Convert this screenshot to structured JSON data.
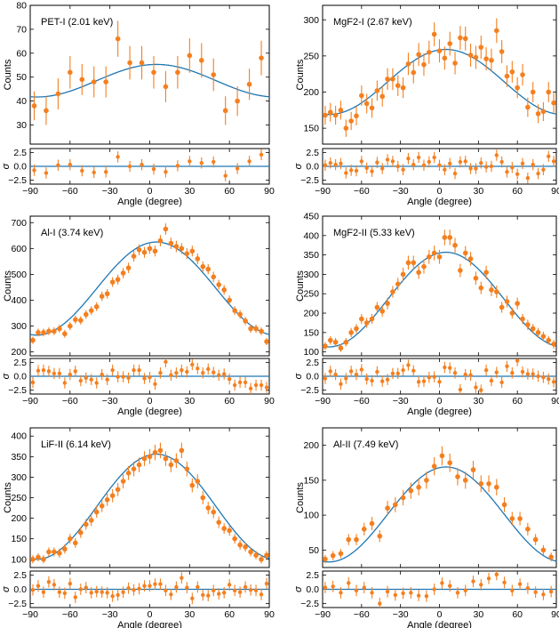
{
  "colors": {
    "data": "#f47f1f",
    "model": "#1f77b4",
    "axes": "#000000"
  },
  "shared": {
    "xlabel": "Angle (degree)",
    "ylabel_main": "Counts",
    "ylabel_resid": "σ",
    "x_ticks": [
      -90,
      -60,
      -30,
      0,
      30,
      60,
      90
    ],
    "resid_ticks": [
      -2.5,
      0.0,
      2.5
    ],
    "resid_tick_labels": [
      "-2.5",
      "0.0",
      "2.5"
    ]
  },
  "chart_data": [
    {
      "type": "scatter",
      "title": "PET-I (2.01 keV)",
      "xlim": [
        -90,
        90
      ],
      "ylim": [
        22,
        80
      ],
      "yticks": [
        30,
        40,
        50,
        60,
        70,
        80
      ],
      "model": {
        "mean": 48.5,
        "amplitude": 6.8
      },
      "x": [
        -87,
        -78,
        -69,
        -60,
        -51,
        -42,
        -33,
        -24,
        -15,
        -6,
        3,
        12,
        21,
        30,
        39,
        48,
        57,
        66,
        75,
        84
      ],
      "y": [
        38,
        36,
        43,
        52,
        49,
        48,
        48,
        66,
        56,
        56,
        52,
        46,
        52,
        59,
        57,
        51,
        36,
        40,
        47,
        58
      ],
      "yerr": [
        6,
        6,
        6.5,
        6.8,
        6.5,
        6.5,
        6.5,
        7.5,
        7,
        7,
        6.8,
        6.5,
        6.8,
        7.2,
        7.2,
        6.8,
        6,
        6.2,
        6.5,
        7.2
      ],
      "residuals": [
        -0.7,
        -1.2,
        0.2,
        0.3,
        -0.8,
        -1.1,
        -1.0,
        1.7,
        0.0,
        0.3,
        -0.5,
        -1.0,
        0.1,
        0.9,
        0.6,
        0.8,
        -1.7,
        -0.4,
        0.9,
        2.1
      ]
    },
    {
      "type": "scatter",
      "title": "MgF2-I (2.67 keV)",
      "xlim": [
        -90,
        90
      ],
      "ylim": [
        128,
        320
      ],
      "yticks": [
        150,
        200,
        250,
        300
      ],
      "model": {
        "mean": 214,
        "amplitude": 45
      },
      "x": [
        -88,
        -84,
        -80,
        -76,
        -72,
        -68,
        -64,
        -60,
        -56,
        -52,
        -48,
        -44,
        -40,
        -36,
        -32,
        -28,
        -24,
        -20,
        -16,
        -12,
        -8,
        -4,
        0,
        4,
        8,
        12,
        16,
        20,
        24,
        28,
        32,
        36,
        40,
        44,
        48,
        52,
        56,
        60,
        64,
        68,
        72,
        76,
        80,
        84,
        88
      ],
      "y": [
        168,
        172,
        168,
        175,
        150,
        160,
        167,
        195,
        184,
        178,
        202,
        194,
        218,
        218,
        209,
        206,
        239,
        227,
        252,
        238,
        255,
        280,
        257,
        247,
        267,
        240,
        275,
        274,
        251,
        248,
        262,
        246,
        244,
        285,
        256,
        222,
        228,
        206,
        224,
        179,
        200,
        170,
        173,
        200,
        185
      ],
      "yerr": [
        13,
        13,
        13,
        13,
        12,
        12.5,
        13,
        14,
        13.5,
        13.5,
        14,
        14,
        15,
        15,
        14.5,
        14.5,
        15.5,
        15,
        16,
        15.5,
        16,
        16.5,
        16,
        16,
        16.5,
        15.5,
        16.5,
        16.5,
        16,
        16,
        16,
        16,
        16,
        17,
        16,
        15,
        15,
        14.5,
        15,
        13.5,
        14,
        13,
        13,
        14,
        13.5
      ],
      "residuals": [
        0.2,
        0.6,
        0.3,
        0.5,
        -1.2,
        -0.7,
        -0.8,
        0.9,
        -0.3,
        -0.9,
        0.7,
        -0.4,
        1.2,
        0.9,
        0.0,
        -0.6,
        1.4,
        0.3,
        1.6,
        0.2,
        0.8,
        1.6,
        0.2,
        -0.6,
        0.5,
        -1.3,
        0.8,
        0.9,
        -0.4,
        -0.4,
        0.6,
        -0.1,
        0.0,
        2.0,
        0.8,
        -1.0,
        -0.2,
        -1.4,
        0.5,
        -2.1,
        0.3,
        -1.3,
        -0.6,
        1.8,
        0.9
      ]
    },
    {
      "type": "scatter",
      "title": "Al-I (3.74 keV)",
      "xlim": [
        -90,
        90
      ],
      "ylim": [
        185,
        725
      ],
      "yticks": [
        200,
        300,
        400,
        500,
        600,
        700
      ],
      "model": {
        "mean": 445,
        "amplitude": 180
      },
      "x": [
        -88,
        -84,
        -80,
        -76,
        -72,
        -68,
        -64,
        -60,
        -56,
        -52,
        -48,
        -44,
        -40,
        -36,
        -32,
        -28,
        -24,
        -20,
        -16,
        -12,
        -8,
        -4,
        0,
        4,
        8,
        12,
        16,
        20,
        24,
        28,
        32,
        36,
        40,
        44,
        48,
        52,
        56,
        60,
        64,
        68,
        72,
        76,
        80,
        84,
        88
      ],
      "y": [
        245,
        275,
        275,
        280,
        280,
        290,
        270,
        300,
        325,
        322,
        345,
        360,
        375,
        415,
        425,
        470,
        480,
        505,
        525,
        570,
        595,
        585,
        600,
        590,
        630,
        675,
        620,
        608,
        600,
        580,
        590,
        560,
        530,
        520,
        490,
        460,
        440,
        400,
        360,
        345,
        320,
        290,
        290,
        280,
        240
      ],
      "yerr": [
        14,
        15,
        15,
        15,
        15,
        15,
        15,
        16,
        16,
        16,
        17,
        17,
        17,
        18,
        18,
        19,
        19,
        20,
        20,
        21,
        21,
        21,
        21,
        21,
        22,
        22,
        22,
        22,
        21,
        21,
        21,
        21,
        20,
        20,
        20,
        19,
        19,
        18,
        17,
        17,
        16,
        16,
        16,
        15,
        14
      ],
      "residuals": [
        -1.1,
        1.0,
        1.1,
        0.9,
        0.5,
        0.5,
        -1.2,
        0.3,
        0.9,
        -0.8,
        -0.3,
        -0.6,
        -1.2,
        0.3,
        -0.6,
        1.1,
        -0.1,
        -0.1,
        -0.3,
        1.1,
        1.1,
        -0.4,
        -0.2,
        -1.4,
        0.6,
        2.6,
        0.2,
        0.6,
        1.1,
        0.8,
        2.1,
        1.4,
        0.6,
        1.3,
        0.7,
        0.2,
        0.4,
        -0.5,
        -1.6,
        -1.1,
        -1.1,
        -2.2,
        -1.6,
        -1.6,
        -2.0
      ]
    },
    {
      "type": "scatter",
      "title": "MgF2-II (5.33 keV)",
      "xlim": [
        -90,
        90
      ],
      "ylim": [
        90,
        450
      ],
      "yticks": [
        100,
        150,
        200,
        250,
        300,
        350,
        400,
        450
      ],
      "model": {
        "mean": 235,
        "amplitude": 122
      },
      "x": [
        -88,
        -84,
        -80,
        -76,
        -72,
        -68,
        -64,
        -60,
        -56,
        -52,
        -48,
        -44,
        -40,
        -36,
        -32,
        -28,
        -24,
        -20,
        -16,
        -12,
        -8,
        -4,
        0,
        4,
        8,
        12,
        16,
        20,
        24,
        28,
        32,
        36,
        40,
        44,
        48,
        52,
        56,
        60,
        64,
        68,
        72,
        76,
        80,
        84,
        88
      ],
      "y": [
        115,
        130,
        125,
        110,
        125,
        150,
        160,
        185,
        175,
        185,
        215,
        205,
        225,
        255,
        275,
        300,
        330,
        330,
        305,
        320,
        345,
        355,
        345,
        395,
        395,
        375,
        310,
        355,
        340,
        290,
        265,
        305,
        260,
        255,
        215,
        230,
        200,
        225,
        185,
        170,
        160,
        150,
        140,
        130,
        120
      ],
      "yerr": [
        10,
        11,
        11,
        10,
        11,
        12,
        12,
        13,
        13,
        13,
        14,
        14,
        15,
        15,
        16,
        17,
        18,
        18,
        17,
        18,
        18,
        19,
        18,
        20,
        20,
        19,
        17,
        18,
        18,
        17,
        16,
        17,
        16,
        16,
        14,
        15,
        14,
        15,
        13,
        13,
        12,
        12,
        12,
        11,
        11
      ],
      "residuals": [
        -0.4,
        0.9,
        0.3,
        -1.4,
        -0.4,
        0.9,
        0.3,
        1.2,
        -0.5,
        -0.8,
        0.8,
        -0.9,
        -0.6,
        0.5,
        0.5,
        1.1,
        2.0,
        1.0,
        -1.0,
        -0.9,
        -0.2,
        -0.1,
        -1.0,
        1.6,
        1.5,
        0.6,
        -2.4,
        0.3,
        0.2,
        -2.0,
        -2.5,
        1.1,
        -0.8,
        0.7,
        -1.1,
        1.8,
        0.6,
        2.8,
        0.8,
        0.4,
        0.4,
        0.0,
        -0.2,
        -0.5,
        -1.0
      ]
    },
    {
      "type": "scatter",
      "title": "LiF-II (6.14 keV)",
      "xlim": [
        -90,
        90
      ],
      "ylim": [
        80,
        420
      ],
      "yticks": [
        100,
        150,
        200,
        250,
        300,
        350,
        400
      ],
      "model": {
        "mean": 228,
        "amplitude": 128
      },
      "x": [
        -88,
        -84,
        -80,
        -76,
        -72,
        -68,
        -64,
        -60,
        -56,
        -52,
        -48,
        -44,
        -40,
        -36,
        -32,
        -28,
        -24,
        -20,
        -16,
        -12,
        -8,
        -4,
        0,
        4,
        8,
        12,
        16,
        20,
        24,
        28,
        32,
        36,
        40,
        44,
        48,
        52,
        56,
        60,
        64,
        68,
        72,
        76,
        80,
        84,
        88
      ],
      "y": [
        100,
        105,
        100,
        118,
        118,
        115,
        125,
        150,
        140,
        165,
        185,
        195,
        215,
        230,
        245,
        255,
        270,
        290,
        310,
        320,
        330,
        345,
        350,
        360,
        365,
        345,
        330,
        340,
        365,
        320,
        280,
        290,
        250,
        225,
        215,
        190,
        175,
        170,
        150,
        135,
        130,
        118,
        110,
        100,
        110
      ],
      "yerr": [
        10,
        10,
        10,
        11,
        11,
        11,
        11,
        12,
        12,
        13,
        13,
        14,
        14,
        15,
        15,
        16,
        16,
        17,
        17,
        18,
        18,
        18,
        18,
        19,
        19,
        18,
        18,
        18,
        19,
        18,
        17,
        17,
        16,
        15,
        15,
        14,
        13,
        13,
        12,
        12,
        11,
        11,
        10,
        10,
        10
      ],
      "residuals": [
        -0.1,
        0.6,
        -0.5,
        1.3,
        0.8,
        -0.5,
        -0.7,
        1.0,
        -1.4,
        0.0,
        0.3,
        -0.6,
        -0.4,
        -0.5,
        -0.6,
        -1.2,
        -1.0,
        -0.5,
        0.2,
        -0.1,
        0.1,
        0.6,
        0.6,
        0.9,
        0.9,
        -0.2,
        -0.9,
        0.4,
        2.0,
        0.3,
        -1.6,
        0.4,
        -1.0,
        -1.1,
        -0.2,
        -0.8,
        -0.6,
        0.8,
        -0.2,
        -0.5,
        0.4,
        -0.1,
        -0.2,
        -0.9,
        1.0
      ]
    },
    {
      "type": "scatter",
      "title": "Al-II (7.49 keV)",
      "xlim": [
        -90,
        90
      ],
      "ylim": [
        25,
        225
      ],
      "yticks": [
        50,
        100,
        150,
        200
      ],
      "model": {
        "mean": 101,
        "amplitude": 68
      },
      "x": [
        -88,
        -82,
        -76,
        -70,
        -64,
        -58,
        -52,
        -46,
        -40,
        -34,
        -28,
        -22,
        -16,
        -10,
        -4,
        2,
        8,
        14,
        20,
        26,
        32,
        38,
        44,
        50,
        56,
        62,
        68,
        74,
        80,
        86
      ],
      "y": [
        37,
        42,
        45,
        65,
        65,
        80,
        88,
        70,
        110,
        115,
        125,
        135,
        140,
        150,
        170,
        185,
        175,
        155,
        150,
        165,
        145,
        145,
        140,
        115,
        95,
        95,
        80,
        65,
        50,
        40
      ],
      "yerr": [
        6,
        6.5,
        6.5,
        8,
        8,
        9,
        9.5,
        8.5,
        10.5,
        10.8,
        11,
        11.6,
        11.8,
        12.2,
        13,
        13.6,
        13.2,
        12.4,
        12.2,
        12.8,
        12,
        12,
        11.8,
        10.7,
        9.7,
        9.7,
        9,
        8,
        7,
        6.3
      ],
      "residuals": [
        0.3,
        0.5,
        -0.6,
        1.1,
        -0.2,
        0.3,
        -0.6,
        -2.5,
        -0.4,
        -1.0,
        -0.7,
        -0.6,
        -1.1,
        -1.2,
        0.0,
        1.1,
        0.6,
        -0.6,
        -0.2,
        1.4,
        0.8,
        1.9,
        2.6,
        1.2,
        -0.2,
        0.9,
        0.2,
        -0.5,
        -0.9,
        -0.4
      ]
    }
  ]
}
